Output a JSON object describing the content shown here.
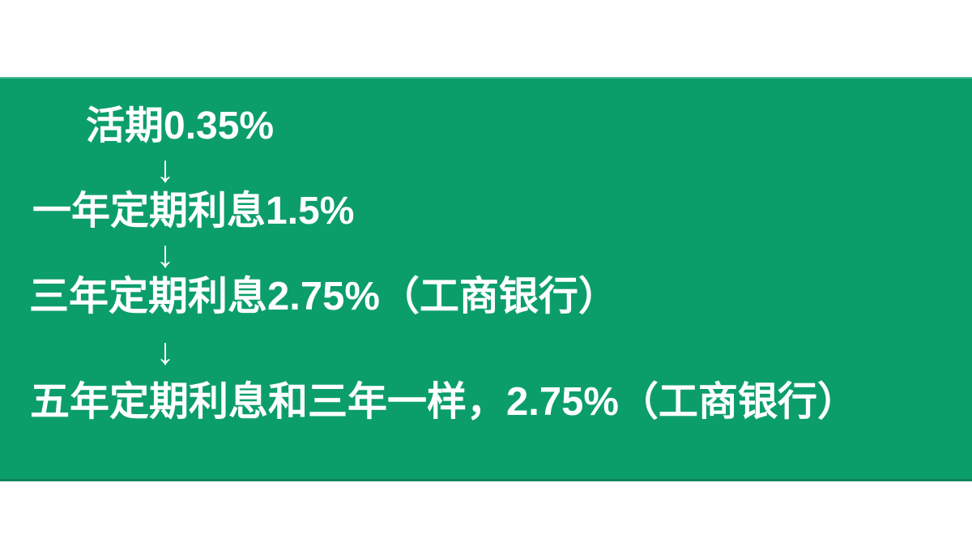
{
  "slide": {
    "arrow_glyph": "↓",
    "lines": [
      {
        "text": "活期0.35%"
      },
      {
        "text": "一年定期利息1.5%"
      },
      {
        "text": "三年定期利息2.75%（工商银行）"
      },
      {
        "text": "五年定期利息和三年一样，2.75%（工商银行）"
      }
    ],
    "colors": {
      "band": "#0c9e6a",
      "band_edge": "#11855c",
      "text": "#ffffff",
      "page": "#ffffff"
    }
  }
}
